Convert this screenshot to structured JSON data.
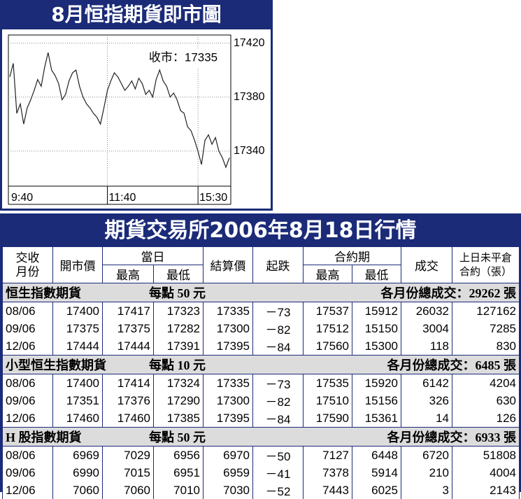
{
  "chart_data": {
    "type": "line",
    "title": "8月恒指期貨即市圖",
    "annotation": "收市：17335",
    "color": "#222222",
    "categories": [
      "9:40",
      null,
      null,
      null,
      null,
      null,
      null,
      null,
      null,
      null,
      null,
      null,
      null,
      null,
      null,
      null,
      null,
      null,
      null,
      null,
      null,
      null,
      null,
      null,
      null,
      null,
      null,
      null,
      "11:40",
      null,
      null,
      null,
      null,
      null,
      null,
      null,
      null,
      null,
      null,
      null,
      null,
      null,
      null,
      null,
      null,
      null,
      null,
      null,
      null,
      null,
      null,
      null,
      null,
      null,
      "15:30",
      null,
      null,
      null,
      null,
      null,
      null,
      null,
      null,
      null
    ],
    "values": [
      17395,
      17405,
      17368,
      17375,
      17360,
      17372,
      17378,
      17385,
      17393,
      17388,
      17402,
      17413,
      17400,
      17396,
      17390,
      17378,
      17382,
      17392,
      17398,
      17400,
      17388,
      17380,
      17375,
      17372,
      17368,
      17365,
      17360,
      17372,
      17385,
      17392,
      17398,
      17395,
      17390,
      17385,
      17388,
      17392,
      17386,
      17394,
      17390,
      17382,
      17385,
      17380,
      17393,
      17400,
      17392,
      17388,
      17380,
      17383,
      17378,
      17370,
      17368,
      17358,
      17355,
      17348,
      17340,
      17330,
      17348,
      17352,
      17345,
      17350,
      17340,
      17335,
      17328,
      17335
    ],
    "ylim": [
      17314,
      17426
    ],
    "yticks": [
      17340,
      17380,
      17420
    ],
    "grid": true
  },
  "table": {
    "title": "期貨交易所2006年8月18日行情",
    "headers": [
      "交收月份",
      "開市價",
      "當日",
      "結算價",
      "起跌",
      "合約期",
      "成交",
      "上日未平倉合約（張）"
    ],
    "subheaders": [
      "最高",
      "最低",
      "最高",
      "最低"
    ],
    "sections": [
      {
        "name": "恒生指數期貨",
        "unit": "每點 50 元",
        "total": "各月份總成交：29262 張",
        "rows": [
          [
            "08/06",
            "17400",
            "17417",
            "17323",
            "17335",
            "－73",
            "17537",
            "15912",
            "26032",
            "127162"
          ],
          [
            "09/06",
            "17375",
            "17375",
            "17282",
            "17300",
            "－82",
            "17512",
            "15150",
            "3004",
            "7285"
          ],
          [
            "12/06",
            "17444",
            "17444",
            "17391",
            "17395",
            "－84",
            "17560",
            "15300",
            "118",
            "830"
          ]
        ]
      },
      {
        "name": "小型恒生指數期貨",
        "unit": "每點 10 元",
        "total": "各月份總成交：6485 張",
        "rows": [
          [
            "08/06",
            "17400",
            "17414",
            "17324",
            "17335",
            "－73",
            "17535",
            "15920",
            "6142",
            "4204"
          ],
          [
            "09/06",
            "17351",
            "17376",
            "17290",
            "17300",
            "－82",
            "17510",
            "15156",
            "326",
            "630"
          ],
          [
            "12/06",
            "17460",
            "17460",
            "17385",
            "17395",
            "－84",
            "17590",
            "15361",
            "14",
            "126"
          ]
        ]
      },
      {
        "name": "H 股指數期貨",
        "unit": "每點 50 元",
        "total": "各月份總成交：6933 張",
        "rows": [
          [
            "08/06",
            "6969",
            "7029",
            "6956",
            "6970",
            "－50",
            "7127",
            "6448",
            "6720",
            "51808"
          ],
          [
            "09/06",
            "6990",
            "7015",
            "6951",
            "6959",
            "－41",
            "7378",
            "5914",
            "210",
            "4004"
          ],
          [
            "12/06",
            "7060",
            "7060",
            "7010",
            "7030",
            "－52",
            "7443",
            "6025",
            "3",
            "2143"
          ]
        ]
      }
    ]
  }
}
